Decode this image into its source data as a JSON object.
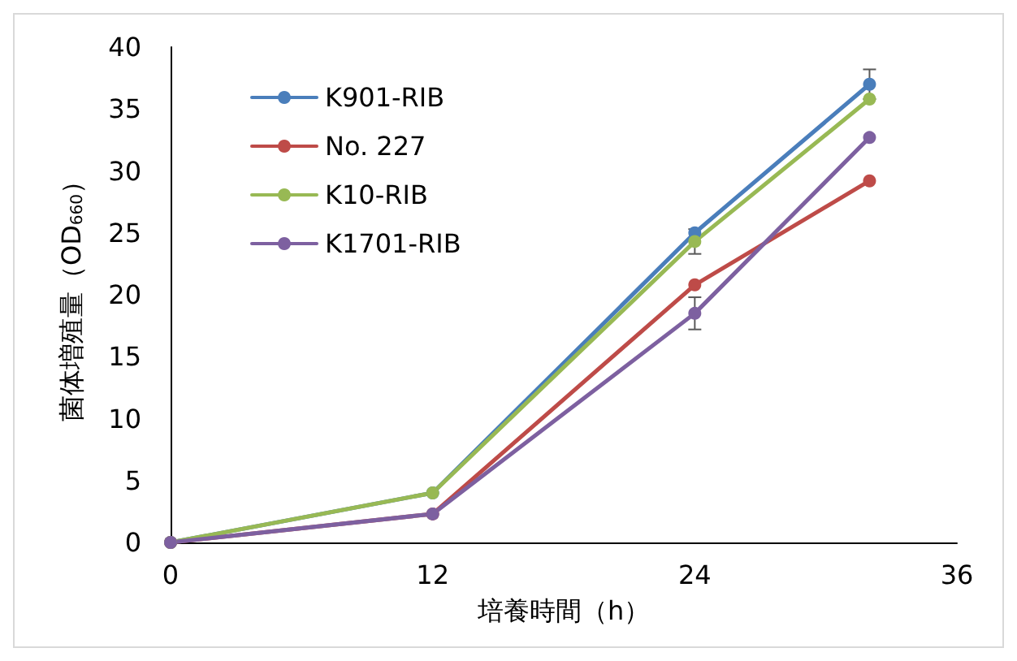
{
  "chart_data": {
    "type": "line",
    "xlabel": "培養時間（h）",
    "ylabel": "菌体増殖量（OD$_{660}$）",
    "x": [
      0,
      12,
      24,
      32
    ],
    "xlim": [
      0,
      36
    ],
    "xticks": [
      0,
      12,
      24,
      36
    ],
    "ylim": [
      0,
      40
    ],
    "yticks": [
      0,
      5,
      10,
      15,
      20,
      25,
      30,
      35,
      40
    ],
    "grid": false,
    "legend": "top left",
    "marker": "circle",
    "line_style": "solid",
    "series": [
      {
        "name": "K901-RIB",
        "color": "#4a7ebb",
        "values": [
          0,
          4,
          25,
          37
        ],
        "errors": [
          null,
          null,
          null,
          1.2
        ]
      },
      {
        "name": "No. 227",
        "color": "#be4b48",
        "values": [
          0,
          2.3,
          20.8,
          29.2
        ]
      },
      {
        "name": "K10-RIB",
        "color": "#98b954",
        "values": [
          0,
          4,
          24.3,
          35.8
        ],
        "errors": [
          null,
          null,
          1,
          null
        ]
      },
      {
        "name": "K1701-RIB",
        "color": "#7d60a0",
        "values": [
          0,
          2.3,
          18.5,
          32.7
        ],
        "errors": [
          null,
          null,
          1.3,
          null
        ]
      }
    ]
  }
}
